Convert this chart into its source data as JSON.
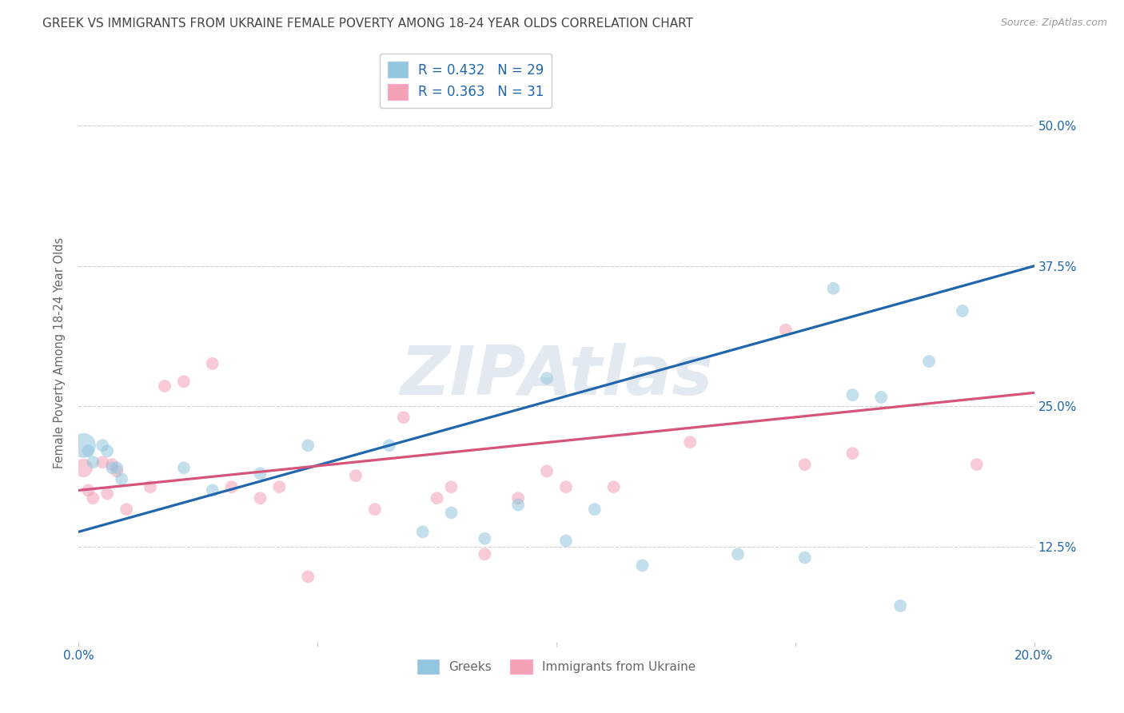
{
  "title": "GREEK VS IMMIGRANTS FROM UKRAINE FEMALE POVERTY AMONG 18-24 YEAR OLDS CORRELATION CHART",
  "source": "Source: ZipAtlas.com",
  "ylabel": "Female Poverty Among 18-24 Year Olds",
  "ytick_vals": [
    0.125,
    0.25,
    0.375,
    0.5
  ],
  "ytick_labels": [
    "12.5%",
    "25.0%",
    "37.5%",
    "50.0%"
  ],
  "xlim": [
    0.0,
    0.2
  ],
  "ylim": [
    0.04,
    0.555
  ],
  "legend_label1": "Greeks",
  "legend_label2": "Immigrants from Ukraine",
  "legend_R1": "R = 0.432",
  "legend_N1": "N = 29",
  "legend_R2": "R = 0.363",
  "legend_N2": "N = 31",
  "blue_color": "#92c5de",
  "pink_color": "#f4a0b5",
  "blue_line_color": "#2166ac",
  "pink_line_color": "#d6537a",
  "watermark": "ZIPAtlas",
  "greek_x": [
    0.001,
    0.002,
    0.003,
    0.005,
    0.006,
    0.007,
    0.008,
    0.009,
    0.022,
    0.028,
    0.038,
    0.048,
    0.065,
    0.072,
    0.078,
    0.085,
    0.092,
    0.098,
    0.102,
    0.108,
    0.118,
    0.138,
    0.152,
    0.158,
    0.162,
    0.168,
    0.172,
    0.178,
    0.185
  ],
  "greek_y": [
    0.215,
    0.21,
    0.2,
    0.215,
    0.21,
    0.195,
    0.195,
    0.185,
    0.195,
    0.175,
    0.19,
    0.215,
    0.215,
    0.138,
    0.155,
    0.132,
    0.162,
    0.275,
    0.13,
    0.158,
    0.108,
    0.118,
    0.115,
    0.355,
    0.26,
    0.258,
    0.072,
    0.29,
    0.335
  ],
  "ukraine_x": [
    0.001,
    0.002,
    0.003,
    0.005,
    0.006,
    0.007,
    0.008,
    0.01,
    0.015,
    0.018,
    0.022,
    0.028,
    0.032,
    0.038,
    0.042,
    0.048,
    0.058,
    0.062,
    0.068,
    0.075,
    0.078,
    0.085,
    0.092,
    0.098,
    0.102,
    0.112,
    0.128,
    0.148,
    0.152,
    0.162,
    0.188
  ],
  "ukraine_y": [
    0.195,
    0.175,
    0.168,
    0.2,
    0.172,
    0.198,
    0.192,
    0.158,
    0.178,
    0.268,
    0.272,
    0.288,
    0.178,
    0.168,
    0.178,
    0.098,
    0.188,
    0.158,
    0.24,
    0.168,
    0.178,
    0.118,
    0.168,
    0.192,
    0.178,
    0.178,
    0.218,
    0.318,
    0.198,
    0.208,
    0.198
  ],
  "greek_sizes": [
    500,
    130,
    130,
    130,
    130,
    130,
    130,
    130,
    130,
    130,
    130,
    130,
    130,
    130,
    130,
    130,
    130,
    130,
    130,
    130,
    130,
    130,
    130,
    130,
    130,
    130,
    130,
    130,
    130
  ],
  "ukraine_sizes": [
    280,
    130,
    130,
    130,
    130,
    130,
    130,
    130,
    130,
    130,
    130,
    130,
    130,
    130,
    130,
    130,
    130,
    130,
    130,
    130,
    130,
    130,
    130,
    130,
    130,
    130,
    130,
    130,
    130,
    130,
    130
  ],
  "background_color": "#ffffff",
  "grid_color": "#d0d0d0",
  "title_color": "#444444",
  "axis_label_color": "#2166ac",
  "watermark_color": "#ccd8e5"
}
